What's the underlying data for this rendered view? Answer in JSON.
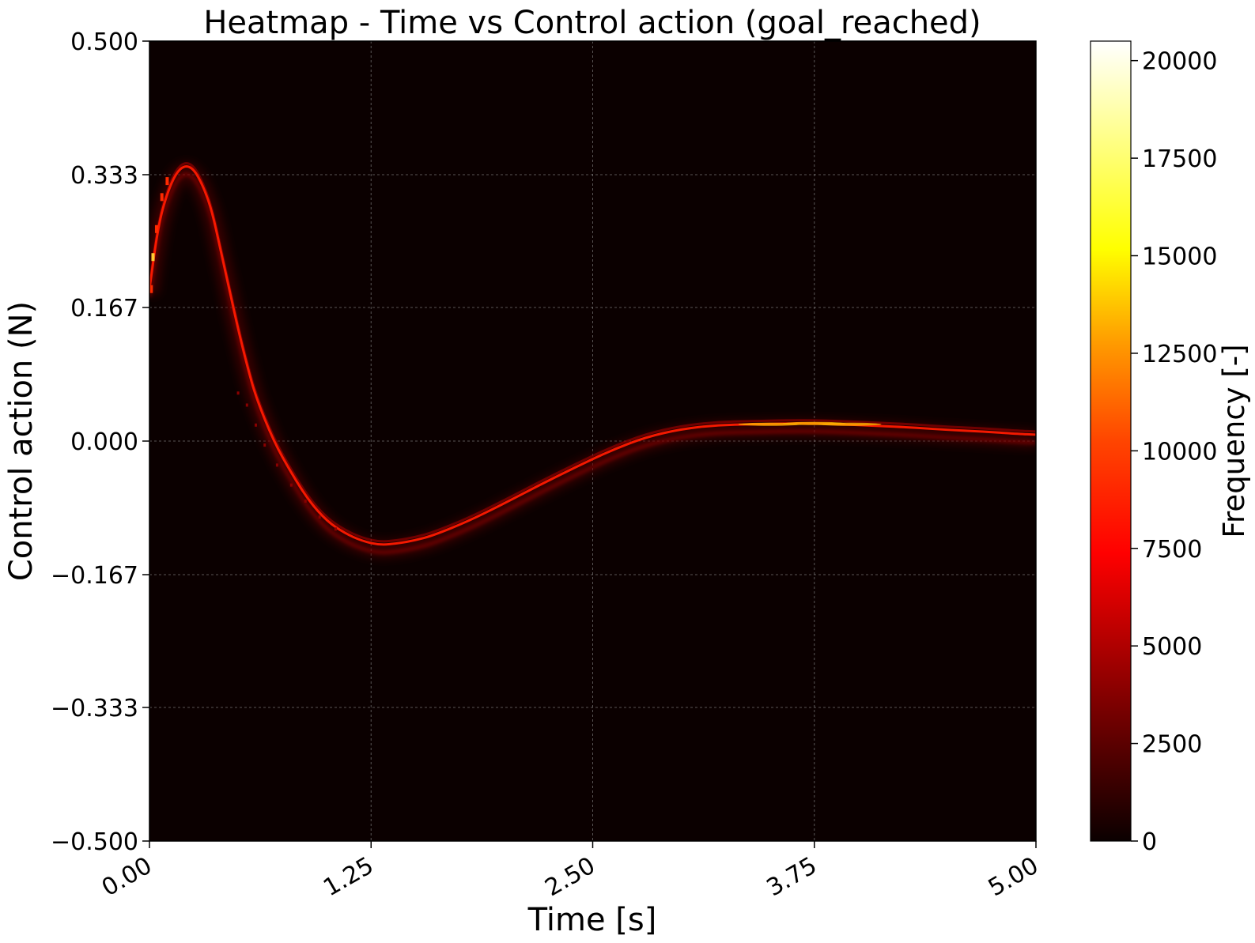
{
  "chart_data": {
    "type": "heatmap",
    "title": "Heatmap - Time vs Control action (goal_reached)",
    "xlabel": "Time [s]",
    "ylabel": "Control action (N)",
    "xlim": [
      0,
      5
    ],
    "ylim": [
      -0.5,
      0.5
    ],
    "x_ticks": [
      "0.00",
      "1.25",
      "2.50",
      "3.75",
      "5.00"
    ],
    "y_ticks": [
      "0.500",
      "0.333",
      "0.167",
      "0.000",
      "−0.167",
      "−0.333",
      "−0.500"
    ],
    "x_tick_values": [
      0,
      1.25,
      2.5,
      3.75,
      5
    ],
    "y_tick_values": [
      0.5,
      0.333,
      0.167,
      0,
      -0.167,
      -0.333,
      -0.5
    ],
    "grid": true,
    "colormap": "hot",
    "colorbar": {
      "label": "Frequency [-]",
      "min": 0,
      "max": 20500,
      "ticks": [
        "0",
        "2500",
        "5000",
        "7500",
        "10000",
        "12500",
        "15000",
        "17500",
        "20000"
      ],
      "tick_values": [
        0,
        2500,
        5000,
        7500,
        10000,
        12500,
        15000,
        17500,
        20000
      ]
    },
    "background_color": "#0b0000",
    "main_trajectory": {
      "t": [
        0,
        0.05,
        0.1,
        0.15,
        0.2,
        0.25,
        0.3,
        0.35,
        0.4,
        0.45,
        0.5,
        0.55,
        0.6,
        0.7,
        0.8,
        0.9,
        1.0,
        1.1,
        1.2,
        1.3,
        1.4,
        1.5,
        1.6,
        1.8,
        2.0,
        2.2,
        2.4,
        2.6,
        2.8,
        3.0,
        3.2,
        3.4,
        3.6,
        3.75,
        3.9,
        4.1,
        4.3,
        4.5,
        4.7,
        4.9,
        5.0
      ],
      "u": [
        0.19,
        0.27,
        0.31,
        0.335,
        0.345,
        0.34,
        0.32,
        0.29,
        0.24,
        0.19,
        0.14,
        0.095,
        0.055,
        0.0,
        -0.04,
        -0.075,
        -0.1,
        -0.115,
        -0.125,
        -0.13,
        -0.128,
        -0.124,
        -0.118,
        -0.1,
        -0.078,
        -0.055,
        -0.033,
        -0.012,
        0.005,
        0.015,
        0.02,
        0.021,
        0.022,
        0.022,
        0.021,
        0.019,
        0.017,
        0.014,
        0.012,
        0.009,
        0.008
      ]
    },
    "peak_density": 20500
  }
}
